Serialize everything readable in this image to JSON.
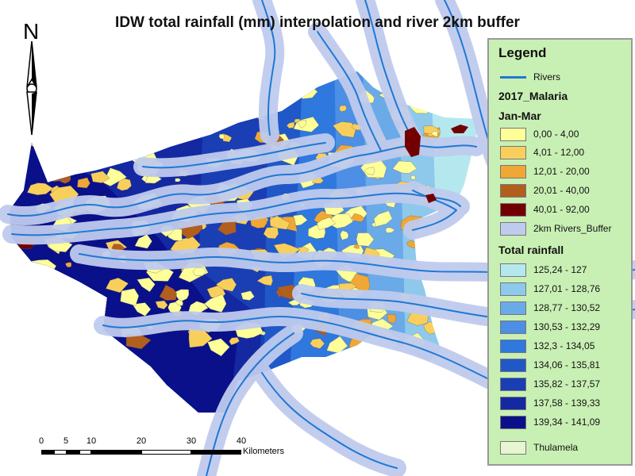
{
  "title": "IDW total rainfall (mm) interpolation and river 2km buffer",
  "north_arrow": {
    "letter": "N",
    "icon": "north-arrow-icon"
  },
  "scale_bar": {
    "ticks": [
      "0",
      "5",
      "10",
      "20",
      "30",
      "40"
    ],
    "units": "Kilometers"
  },
  "legend": {
    "title": "Legend",
    "rivers_label": "Rivers",
    "malaria_heading": "2017_Malaria",
    "period_heading": "Jan-Mar",
    "malaria_classes": [
      {
        "label": "0,00 - 4,00",
        "color": "#ffff99"
      },
      {
        "label": "4,01 - 12,00",
        "color": "#f9cf5c"
      },
      {
        "label": "12,01 - 20,00",
        "color": "#f0a735"
      },
      {
        "label": "20,01 - 40,00",
        "color": "#b25e1d"
      },
      {
        "label": "40,01 - 92,00",
        "color": "#730000"
      }
    ],
    "buffer_label": "2km Rivers_Buffer",
    "buffer_color": "#bfcbee",
    "rainfall_heading": "Total rainfall",
    "rainfall_classes": [
      {
        "label": "125,24 - 127",
        "color": "#b4e8ee"
      },
      {
        "label": "127,01 - 128,76",
        "color": "#8ec9ec"
      },
      {
        "label": "128,77 - 130,52",
        "color": "#6aaae8"
      },
      {
        "label": "130,53 - 132,29",
        "color": "#4c8fe4"
      },
      {
        "label": "132,3 - 134,05",
        "color": "#2e78de"
      },
      {
        "label": "134,06 - 135,81",
        "color": "#2058c8"
      },
      {
        "label": "135,82 - 137,57",
        "color": "#1a3eb4"
      },
      {
        "label": "137,58 - 139,33",
        "color": "#1428a2"
      },
      {
        "label": "139,34 - 141,09",
        "color": "#0a108a"
      }
    ],
    "area_label": "Thulamela",
    "area_color": "#e7f6d0"
  },
  "colors": {
    "river": "#1f78d4",
    "buffer": "#bfcbee",
    "background": "#ffffff"
  }
}
